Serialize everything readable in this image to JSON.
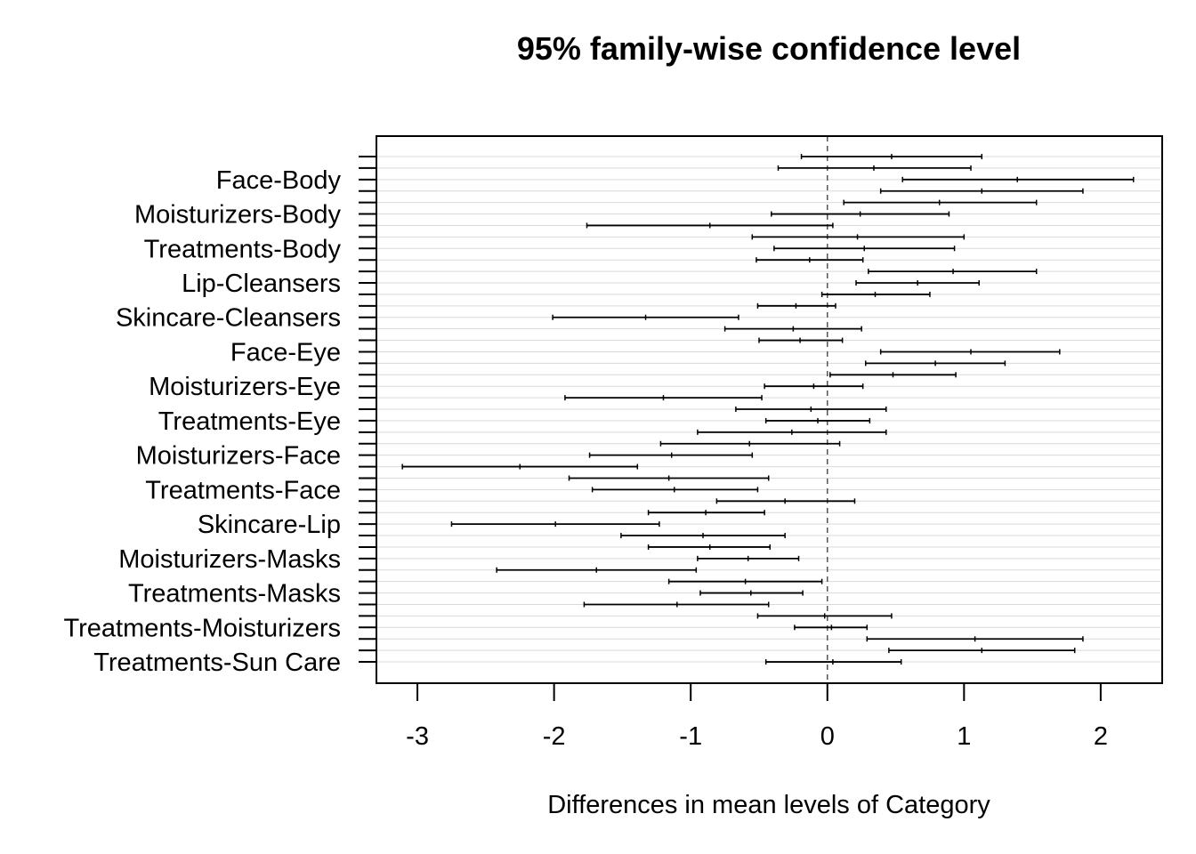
{
  "chart_data": {
    "type": "interval",
    "title": "95% family-wise confidence level",
    "xlabel": "Differences in mean levels of Category",
    "ylabel": "",
    "xlim": [
      -3.3,
      2.45
    ],
    "xticks": [
      -3,
      -2,
      -1,
      0,
      1,
      2
    ],
    "reference_line": 0,
    "grid": true,
    "rows": [
      {
        "label": "",
        "lwr": -0.19,
        "est": 0.47,
        "upr": 1.13
      },
      {
        "label": "",
        "lwr": -0.36,
        "est": 0.34,
        "upr": 1.05
      },
      {
        "label": "Face-Body",
        "lwr": 0.55,
        "est": 1.39,
        "upr": 2.24
      },
      {
        "label": "",
        "lwr": 0.39,
        "est": 1.13,
        "upr": 1.87
      },
      {
        "label": "",
        "lwr": 0.12,
        "est": 0.82,
        "upr": 1.53
      },
      {
        "label": "Moisturizers-Body",
        "lwr": -0.41,
        "est": 0.24,
        "upr": 0.89
      },
      {
        "label": "",
        "lwr": -1.76,
        "est": -0.86,
        "upr": 0.04
      },
      {
        "label": "",
        "lwr": -0.55,
        "est": 0.22,
        "upr": 1.0
      },
      {
        "label": "Treatments-Body",
        "lwr": -0.39,
        "est": 0.27,
        "upr": 0.93
      },
      {
        "label": "",
        "lwr": -0.52,
        "est": -0.13,
        "upr": 0.26
      },
      {
        "label": "",
        "lwr": 0.3,
        "est": 0.92,
        "upr": 1.53
      },
      {
        "label": "Lip-Cleansers",
        "lwr": 0.21,
        "est": 0.66,
        "upr": 1.11
      },
      {
        "label": "",
        "lwr": -0.04,
        "est": 0.35,
        "upr": 0.75
      },
      {
        "label": "",
        "lwr": -0.51,
        "est": -0.23,
        "upr": 0.06
      },
      {
        "label": "Skincare-Cleansers",
        "lwr": -2.01,
        "est": -1.33,
        "upr": -0.65
      },
      {
        "label": "",
        "lwr": -0.75,
        "est": -0.25,
        "upr": 0.25
      },
      {
        "label": "",
        "lwr": -0.5,
        "est": -0.2,
        "upr": 0.11
      },
      {
        "label": "Face-Eye",
        "lwr": 0.39,
        "est": 1.05,
        "upr": 1.7
      },
      {
        "label": "",
        "lwr": 0.28,
        "est": 0.79,
        "upr": 1.3
      },
      {
        "label": "",
        "lwr": 0.02,
        "est": 0.48,
        "upr": 0.94
      },
      {
        "label": "Moisturizers-Eye",
        "lwr": -0.46,
        "est": -0.1,
        "upr": 0.26
      },
      {
        "label": "",
        "lwr": -1.92,
        "est": -1.2,
        "upr": -0.48
      },
      {
        "label": "",
        "lwr": -0.67,
        "est": -0.12,
        "upr": 0.43
      },
      {
        "label": "Treatments-Eye",
        "lwr": -0.45,
        "est": -0.07,
        "upr": 0.31
      },
      {
        "label": "",
        "lwr": -0.95,
        "est": -0.26,
        "upr": 0.43
      },
      {
        "label": "",
        "lwr": -1.22,
        "est": -0.57,
        "upr": 0.09
      },
      {
        "label": "Moisturizers-Face",
        "lwr": -1.74,
        "est": -1.14,
        "upr": -0.55
      },
      {
        "label": "",
        "lwr": -3.11,
        "est": -2.25,
        "upr": -1.39
      },
      {
        "label": "",
        "lwr": -1.89,
        "est": -1.16,
        "upr": -0.43
      },
      {
        "label": "Treatments-Face",
        "lwr": -1.72,
        "est": -1.12,
        "upr": -0.51
      },
      {
        "label": "",
        "lwr": -0.81,
        "est": -0.31,
        "upr": 0.2
      },
      {
        "label": "",
        "lwr": -1.31,
        "est": -0.89,
        "upr": -0.46
      },
      {
        "label": "Skincare-Lip",
        "lwr": -2.75,
        "est": -1.99,
        "upr": -1.23
      },
      {
        "label": "",
        "lwr": -1.51,
        "est": -0.91,
        "upr": -0.31
      },
      {
        "label": "",
        "lwr": -1.31,
        "est": -0.86,
        "upr": -0.42
      },
      {
        "label": "Moisturizers-Masks",
        "lwr": -0.95,
        "est": -0.58,
        "upr": -0.21
      },
      {
        "label": "",
        "lwr": -2.42,
        "est": -1.69,
        "upr": -0.96
      },
      {
        "label": "",
        "lwr": -1.16,
        "est": -0.6,
        "upr": -0.04
      },
      {
        "label": "Treatments-Masks",
        "lwr": -0.93,
        "est": -0.56,
        "upr": -0.18
      },
      {
        "label": "",
        "lwr": -1.78,
        "est": -1.1,
        "upr": -0.43
      },
      {
        "label": "",
        "lwr": -0.51,
        "est": -0.02,
        "upr": 0.47
      },
      {
        "label": "Treatments-Moisturizers",
        "lwr": -0.24,
        "est": 0.03,
        "upr": 0.29
      },
      {
        "label": "",
        "lwr": 0.29,
        "est": 1.08,
        "upr": 1.87
      },
      {
        "label": "",
        "lwr": 0.45,
        "est": 1.13,
        "upr": 1.81
      },
      {
        "label": "Treatments-Sun Care",
        "lwr": -0.45,
        "est": 0.04,
        "upr": 0.54
      }
    ]
  }
}
